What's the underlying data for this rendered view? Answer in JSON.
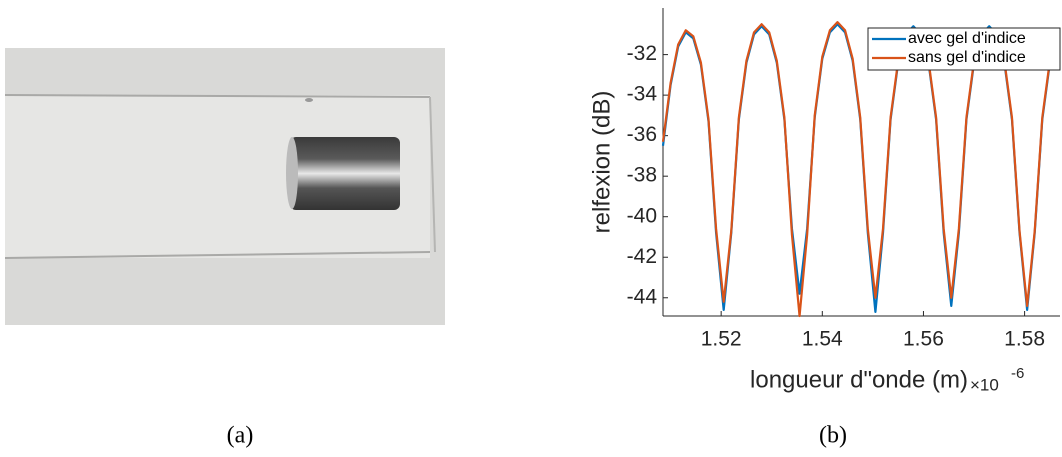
{
  "photo": {
    "caption": "(a)"
  },
  "chart_data": {
    "type": "line",
    "caption": "(b)",
    "xlabel": "longueur d\"onde (m)",
    "xlabel_multiplier": "×10",
    "xlabel_exponent": "-6",
    "ylabel": "relfexion (dB)",
    "x": [
      1.5085,
      1.51,
      1.5115,
      1.513,
      1.5145,
      1.516,
      1.5175,
      1.519,
      1.5205,
      1.522,
      1.5235,
      1.525,
      1.5265,
      1.528,
      1.5295,
      1.531,
      1.5325,
      1.534,
      1.5355,
      1.537,
      1.5385,
      1.54,
      1.5415,
      1.543,
      1.5445,
      1.546,
      1.5475,
      1.549,
      1.5505,
      1.552,
      1.5535,
      1.555,
      1.5565,
      1.558,
      1.5595,
      1.561,
      1.5625,
      1.564,
      1.5655,
      1.567,
      1.5685,
      1.57,
      1.5715,
      1.573,
      1.5745,
      1.576,
      1.5775,
      1.579,
      1.5805,
      1.582,
      1.5835,
      1.585,
      1.5865
    ],
    "series": [
      {
        "name": "avec gel d'indice",
        "color": "#0072bd",
        "values": [
          -36.5,
          -33.5,
          -31.6,
          -30.9,
          -31.2,
          -32.5,
          -35.3,
          -40.8,
          -44.6,
          -40.8,
          -35.2,
          -32.4,
          -31.0,
          -30.6,
          -31.0,
          -32.4,
          -35.2,
          -40.6,
          -43.8,
          -40.6,
          -35.1,
          -32.2,
          -30.9,
          -30.5,
          -30.9,
          -32.3,
          -35.2,
          -40.8,
          -44.7,
          -40.8,
          -35.2,
          -32.4,
          -31.0,
          -30.6,
          -31.0,
          -32.4,
          -35.2,
          -40.8,
          -44.4,
          -40.8,
          -35.2,
          -32.4,
          -31.0,
          -30.6,
          -31.0,
          -32.4,
          -35.2,
          -40.8,
          -44.6,
          -40.8,
          -35.2,
          -32.4,
          -31.0
        ]
      },
      {
        "name": "sans gel d'indice",
        "color": "#d95319",
        "values": [
          -36.3,
          -33.4,
          -31.5,
          -30.8,
          -31.1,
          -32.4,
          -35.2,
          -40.6,
          -44.2,
          -40.7,
          -35.1,
          -32.3,
          -30.9,
          -30.5,
          -30.9,
          -32.3,
          -35.1,
          -40.9,
          -44.9,
          -40.9,
          -35.0,
          -32.1,
          -30.8,
          -30.4,
          -30.8,
          -32.2,
          -35.1,
          -40.6,
          -44.0,
          -40.6,
          -35.1,
          -32.3,
          -31.0,
          -30.7,
          -31.0,
          -32.3,
          -35.1,
          -40.6,
          -44.0,
          -40.6,
          -35.1,
          -32.3,
          -31.0,
          -30.7,
          -31.0,
          -32.3,
          -35.1,
          -40.7,
          -44.4,
          -40.7,
          -35.1,
          -32.3,
          -30.9
        ]
      }
    ],
    "xlim": [
      1.5085,
      1.587
    ],
    "xticks": [
      1.52,
      1.54,
      1.56,
      1.58
    ],
    "ylim": [
      -44.9,
      -29.7
    ],
    "yticks": [
      -44,
      -42,
      -40,
      -38,
      -36,
      -34,
      -32
    ],
    "legend": "upper right"
  }
}
